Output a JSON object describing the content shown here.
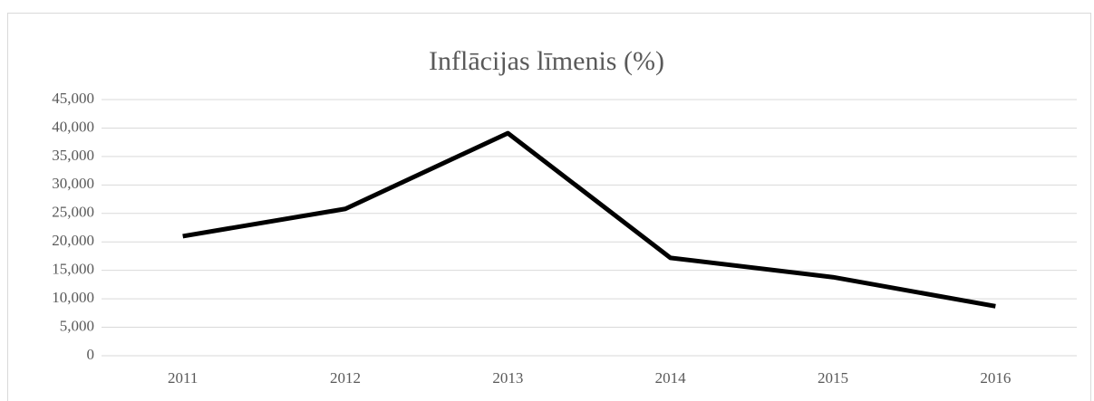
{
  "chart_data": {
    "type": "line",
    "title": "Inflācijas līmenis (%)",
    "categories": [
      "2011",
      "2012",
      "2013",
      "2014",
      "2015",
      "2016"
    ],
    "series": [
      {
        "name": "Inflācijas līmenis (%)",
        "color": "#000000",
        "values": [
          21000,
          25800,
          39100,
          17200,
          13800,
          8700
        ]
      }
    ],
    "ylim": [
      0,
      45000
    ],
    "yticks": [
      0,
      {
        "value": 5000,
        "label": "5,000"
      },
      {
        "value": 10000,
        "label": "10,000"
      },
      {
        "value": 15000,
        "label": "15,000"
      },
      {
        "value": 20000,
        "label": "20,000"
      },
      {
        "value": 25000,
        "label": "25,000"
      },
      {
        "value": 30000,
        "label": "30,000"
      },
      {
        "value": 35000,
        "label": "35,000"
      },
      {
        "value": 40000,
        "label": "40,000"
      },
      {
        "value": 45000,
        "label": "45,000"
      }
    ],
    "grid": true
  }
}
